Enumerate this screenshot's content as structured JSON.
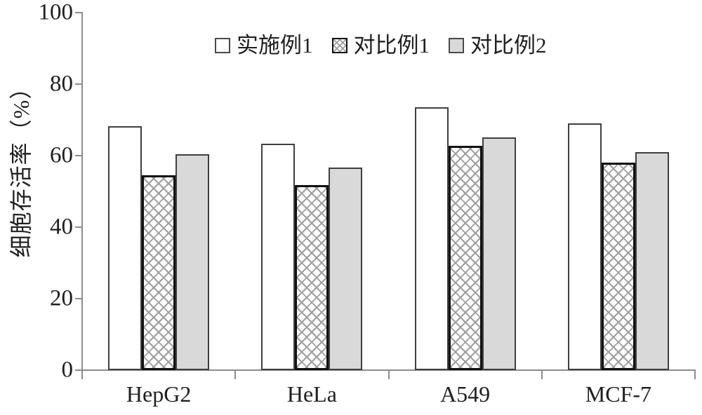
{
  "chart_data": {
    "type": "bar",
    "title": "",
    "xlabel": "",
    "ylabel": "细胞存活率（%）",
    "ylim": [
      0,
      100
    ],
    "yticks": [
      0,
      20,
      40,
      60,
      80,
      100
    ],
    "grid": false,
    "legend_position": "top-center",
    "categories": [
      "HepG2",
      "HeLa",
      "A549",
      "MCF-7"
    ],
    "series": [
      {
        "name": "实施例1",
        "style": "white",
        "values": [
          68.2,
          63.3,
          73.6,
          69.1
        ]
      },
      {
        "name": "对比例1",
        "style": "hatch",
        "values": [
          54.6,
          51.7,
          62.8,
          58.0
        ]
      },
      {
        "name": "对比例2",
        "style": "gray",
        "values": [
          60.3,
          56.7,
          65.1,
          60.9
        ]
      }
    ]
  },
  "colors": {
    "axis": "#8c8c8c",
    "text": "#1f1f1f",
    "bar_white_fill": "#ffffff",
    "bar_hatch_line": "#9e9e9e",
    "bar_gray_fill": "#d9d9d9",
    "bar_border": "#3f3f3f",
    "hatch_border": "#111111",
    "background": "#ffffff"
  }
}
